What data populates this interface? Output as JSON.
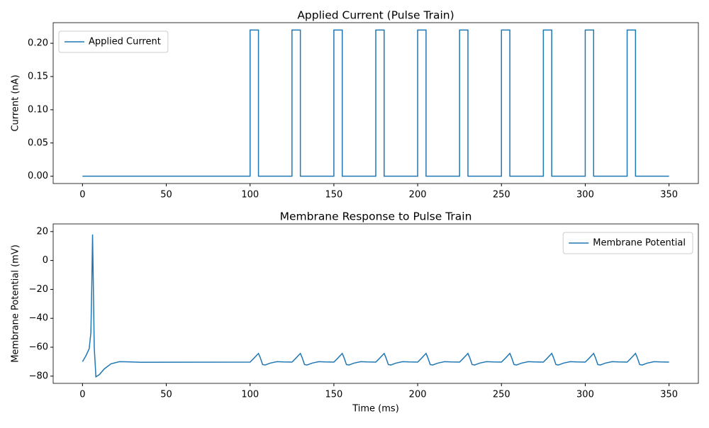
{
  "chart_data": [
    {
      "type": "line",
      "title": "Applied Current (Pulse Train)",
      "ylabel": "Current (nA)",
      "legend": "upper left",
      "grid": false,
      "x": [
        0,
        100,
        100,
        105,
        105,
        125,
        125,
        130,
        130,
        150,
        150,
        155,
        155,
        175,
        175,
        180,
        180,
        200,
        200,
        205,
        205,
        225,
        225,
        230,
        230,
        250,
        250,
        255,
        255,
        275,
        275,
        280,
        280,
        300,
        300,
        305,
        305,
        325,
        325,
        330,
        330,
        350
      ],
      "series": [
        {
          "name": "Applied Current",
          "color": "#1f77b4",
          "values": [
            0,
            0,
            0.22,
            0.22,
            0,
            0,
            0.22,
            0.22,
            0,
            0,
            0.22,
            0.22,
            0,
            0,
            0.22,
            0.22,
            0,
            0,
            0.22,
            0.22,
            0,
            0,
            0.22,
            0.22,
            0,
            0,
            0.22,
            0.22,
            0,
            0,
            0.22,
            0.22,
            0,
            0,
            0.22,
            0.22,
            0,
            0,
            0.22,
            0.22,
            0,
            0
          ]
        }
      ],
      "xlim": [
        -17.5,
        367.5
      ],
      "xticks": [
        0,
        50,
        100,
        150,
        200,
        250,
        300,
        350
      ],
      "ylim": [
        -0.011,
        0.231
      ],
      "yticks": [
        {
          "value": 0,
          "label": "0.00"
        },
        {
          "value": 0.05,
          "label": "0.05"
        },
        {
          "value": 0.1,
          "label": "0.10"
        },
        {
          "value": 0.15,
          "label": "0.15"
        },
        {
          "value": 0.2,
          "label": "0.20"
        }
      ]
    },
    {
      "type": "line",
      "title": "Membrane Response to Pulse Train",
      "xlabel": "Time (ms)",
      "ylabel": "Membrane Potential (mV)",
      "legend": "upper right",
      "grid": false,
      "x": [
        0,
        2,
        4,
        5,
        5.5,
        6,
        6.5,
        7,
        8,
        10,
        13,
        17,
        22,
        27,
        35,
        100,
        102,
        104,
        105,
        106,
        107.5,
        109,
        112,
        116,
        120,
        125,
        127,
        129,
        130,
        131,
        132.5,
        134,
        137,
        141,
        145,
        150,
        152,
        154,
        155,
        156,
        157.5,
        159,
        162,
        166,
        170,
        175,
        177,
        179,
        180,
        181,
        182.5,
        184,
        187,
        191,
        195,
        200,
        202,
        204,
        205,
        206,
        207.5,
        209,
        212,
        216,
        220,
        225,
        227,
        229,
        230,
        231,
        232.5,
        234,
        237,
        241,
        245,
        250,
        252,
        254,
        255,
        256,
        257.5,
        259,
        262,
        266,
        270,
        275,
        277,
        279,
        280,
        281,
        282.5,
        284,
        287,
        291,
        295,
        300,
        302,
        304,
        305,
        306,
        307.5,
        309,
        312,
        316,
        320,
        325,
        327,
        329,
        330,
        331,
        332.5,
        334,
        337,
        341,
        345,
        350
      ],
      "series": [
        {
          "name": "Membrane Potential",
          "color": "#1f77b4",
          "values": [
            -70,
            -66,
            -61,
            -50,
            -20,
            18,
            -20,
            -60,
            -80.5,
            -79,
            -75,
            -71.5,
            -70,
            -70.1,
            -70.4,
            -70.3,
            -68,
            -65.5,
            -64.3,
            -67,
            -72,
            -72.3,
            -71,
            -70,
            -70.2,
            -70.3,
            -68,
            -65.5,
            -64.3,
            -67,
            -72,
            -72.3,
            -71,
            -70,
            -70.2,
            -70.3,
            -68,
            -65.5,
            -64.3,
            -67,
            -72,
            -72.3,
            -71,
            -70,
            -70.2,
            -70.3,
            -68,
            -65.5,
            -64.3,
            -67,
            -72,
            -72.3,
            -71,
            -70,
            -70.2,
            -70.3,
            -68,
            -65.5,
            -64.3,
            -67,
            -72,
            -72.3,
            -71,
            -70,
            -70.2,
            -70.3,
            -68,
            -65.5,
            -64.3,
            -67,
            -72,
            -72.3,
            -71,
            -70,
            -70.2,
            -70.3,
            -68,
            -65.5,
            -64.3,
            -67,
            -72,
            -72.3,
            -71,
            -70,
            -70.2,
            -70.3,
            -68,
            -65.5,
            -64.3,
            -67,
            -72,
            -72.3,
            -71,
            -70,
            -70.2,
            -70.3,
            -68,
            -65.5,
            -64.3,
            -67,
            -72,
            -72.3,
            -71,
            -70,
            -70.2,
            -70.3,
            -68,
            -65.5,
            -64.3,
            -67,
            -72,
            -72.3,
            -71,
            -70,
            -70.2,
            -70.3
          ]
        }
      ],
      "xlim": [
        -17.5,
        367.5
      ],
      "xticks": [
        0,
        50,
        100,
        150,
        200,
        250,
        300,
        350
      ],
      "ylim": [
        -85,
        25.3
      ],
      "yticks": [
        {
          "value": -80,
          "label": "−80"
        },
        {
          "value": -60,
          "label": "−60"
        },
        {
          "value": -40,
          "label": "−40"
        },
        {
          "value": -20,
          "label": "−20"
        },
        0,
        20
      ]
    }
  ]
}
